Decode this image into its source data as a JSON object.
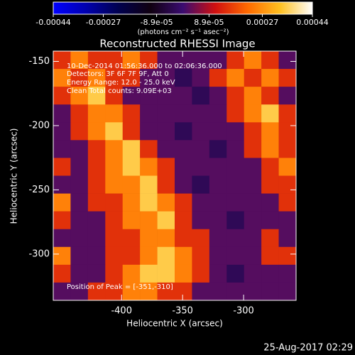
{
  "chart_data": {
    "type": "heatmap",
    "title": "Reconstructed RHESSI Image",
    "colorbar_label": "(photons cm⁻² s⁻¹ asec⁻²)",
    "colorbar_lim": [
      -0.00044,
      0.00044
    ],
    "colorbar_ticks": [
      -0.00044,
      -0.00027,
      {
        "value": -8.9e-05,
        "label": "-8.9e-05"
      },
      {
        "value": 8.9e-05,
        "label": "8.9e-05"
      },
      0.00027,
      0.00044
    ],
    "colorscale": [
      "#0000ff",
      "#0000b0",
      "#000050",
      "#100010",
      "#3a0c70",
      "#d01010",
      "#ff6a00",
      "#ffc020",
      "#ffffff"
    ],
    "x_label": "Heliocentric X (arcsec)",
    "y_label": "Heliocentric Y (arcsec)",
    "xlim": [
      -456,
      -257
    ],
    "xticks": [
      -400,
      -350,
      -300
    ],
    "ylim": [
      -336,
      -142
    ],
    "yticks": [
      -150,
      -200,
      -250,
      -300
    ],
    "annotations": [
      "10-Dec-2014 01:56:36.000 to 02:06:36.000",
      "Detectors: 3F 6F 7F 9F, Att 0",
      "Energy Range: 12.0 - 25.0 keV",
      "Clean    Total counts: 9.09E+03",
      "Position of Peak = [-351,-310]"
    ],
    "footer": "25-Aug-2017 02:29",
    "z": [
      [
        0.00015,
        0.00025,
        0.00015,
        0.00015,
        0.00025,
        0.00015,
        2e-05,
        2e-05,
        2e-05,
        2e-05,
        0.00015,
        0.00025,
        0.00015,
        2e-05
      ],
      [
        0.00025,
        0.00015,
        0.00025,
        0.00015,
        0.00015,
        2e-05,
        2e-05,
        -3e-05,
        2e-05,
        0.00015,
        0.00025,
        0.00015,
        0.00025,
        0.00015
      ],
      [
        0.00015,
        0.00025,
        0.00035,
        0.00015,
        2e-05,
        2e-05,
        2e-05,
        2e-05,
        -3e-05,
        2e-05,
        0.00015,
        0.00025,
        0.00015,
        2e-05
      ],
      [
        2e-05,
        0.00015,
        0.00025,
        0.00025,
        0.00015,
        2e-05,
        2e-05,
        2e-05,
        2e-05,
        2e-05,
        0.00015,
        0.00025,
        0.00035,
        0.00015
      ],
      [
        2e-05,
        0.00015,
        0.00025,
        0.00035,
        0.00015,
        2e-05,
        2e-05,
        -3e-05,
        2e-05,
        2e-05,
        2e-05,
        0.00015,
        0.00025,
        0.00015
      ],
      [
        2e-05,
        2e-05,
        0.00015,
        0.00025,
        0.00035,
        0.00015,
        2e-05,
        2e-05,
        2e-05,
        -3e-05,
        2e-05,
        0.00015,
        0.00025,
        0.00015
      ],
      [
        0.00015,
        2e-05,
        0.00015,
        0.00025,
        0.00035,
        0.00025,
        0.00015,
        2e-05,
        2e-05,
        2e-05,
        2e-05,
        2e-05,
        0.00015,
        0.00025
      ],
      [
        2e-05,
        2e-05,
        0.00015,
        0.00025,
        0.00025,
        0.00035,
        0.00015,
        2e-05,
        -3e-05,
        2e-05,
        2e-05,
        2e-05,
        0.00015,
        0.00015
      ],
      [
        0.00025,
        2e-05,
        0.00015,
        0.00015,
        0.00025,
        0.00035,
        0.00025,
        0.00015,
        2e-05,
        2e-05,
        2e-05,
        2e-05,
        2e-05,
        0.00015
      ],
      [
        0.00015,
        2e-05,
        2e-05,
        0.00015,
        0.00025,
        0.00025,
        0.00035,
        0.00015,
        2e-05,
        2e-05,
        -3e-05,
        2e-05,
        2e-05,
        2e-05
      ],
      [
        2e-05,
        2e-05,
        2e-05,
        0.00015,
        0.00015,
        0.00025,
        0.00025,
        0.00015,
        0.00015,
        2e-05,
        2e-05,
        2e-05,
        0.00015,
        2e-05
      ],
      [
        0.00025,
        2e-05,
        2e-05,
        0.00015,
        0.00015,
        0.00025,
        0.00035,
        0.00025,
        0.00015,
        2e-05,
        2e-05,
        2e-05,
        0.00015,
        0.00015
      ],
      [
        0.00015,
        2e-05,
        2e-05,
        0.00015,
        0.00025,
        0.00035,
        0.00035,
        0.00025,
        0.00015,
        2e-05,
        -3e-05,
        2e-05,
        2e-05,
        2e-05
      ],
      [
        2e-05,
        2e-05,
        0.00015,
        0.00015,
        0.00025,
        0.00025,
        0.00015,
        0.00015,
        2e-05,
        2e-05,
        2e-05,
        2e-05,
        2e-05,
        2e-05
      ]
    ]
  }
}
